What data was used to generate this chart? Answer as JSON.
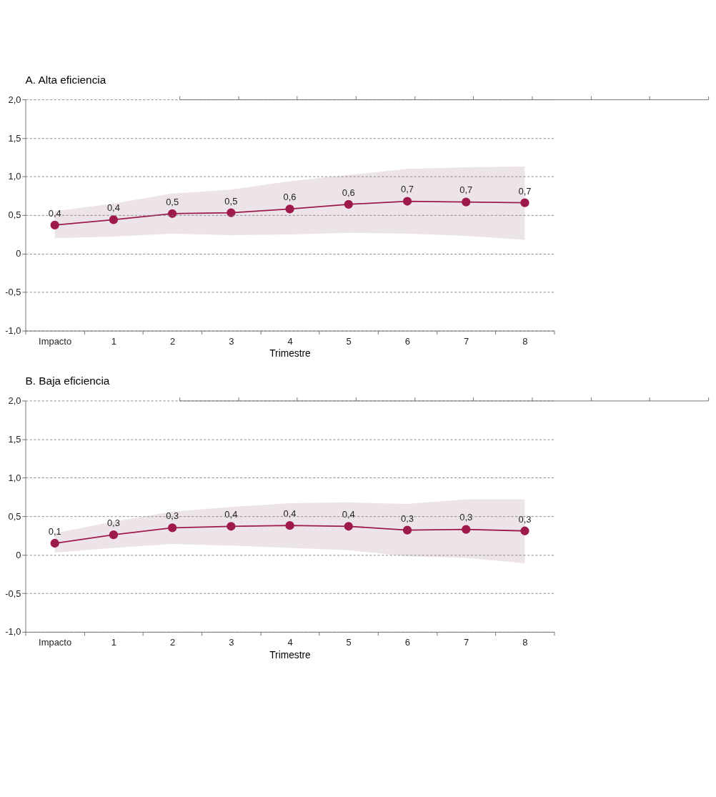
{
  "chart_data": [
    {
      "type": "line",
      "title": "A. Alta eficiencia",
      "xlabel": "Trimestre",
      "categories": [
        "Impacto",
        "1",
        "2",
        "3",
        "4",
        "5",
        "6",
        "7",
        "8"
      ],
      "series": [
        {
          "color": "#9e1a4c",
          "values": [
            0.37,
            0.44,
            0.52,
            0.53,
            0.58,
            0.64,
            0.68,
            0.67,
            0.66
          ],
          "lower": [
            0.2,
            0.22,
            0.26,
            0.24,
            0.25,
            0.27,
            0.26,
            0.23,
            0.18
          ],
          "upper": [
            0.55,
            0.65,
            0.78,
            0.83,
            0.94,
            1.02,
            1.1,
            1.12,
            1.13
          ],
          "value_labels": [
            "0,4",
            "0,4",
            "0,5",
            "0,5",
            "0,6",
            "0,6",
            "0,7",
            "0,7",
            "0,7"
          ]
        }
      ],
      "ylim": [
        -1.0,
        2.0
      ],
      "yticks": [
        {
          "value": -1.0,
          "label": "-1,0"
        },
        {
          "value": -0.5,
          "label": "-0,5"
        },
        {
          "value": 0,
          "label": "0"
        },
        {
          "value": 0.5,
          "label": "0,5"
        },
        {
          "value": 1.0,
          "label": "1,0"
        },
        {
          "value": 1.5,
          "label": "1,5"
        },
        {
          "value": 2.0,
          "label": "2,0"
        }
      ],
      "grid": "y",
      "marker": "circle",
      "line_style": "solid"
    },
    {
      "type": "line",
      "title": "B. Baja eficiencia",
      "xlabel": "Trimestre",
      "categories": [
        "Impacto",
        "1",
        "2",
        "3",
        "4",
        "5",
        "6",
        "7",
        "8"
      ],
      "series": [
        {
          "color": "#9e1a4c",
          "values": [
            0.15,
            0.26,
            0.35,
            0.37,
            0.38,
            0.37,
            0.32,
            0.33,
            0.31
          ],
          "lower": [
            0.03,
            0.09,
            0.14,
            0.12,
            0.09,
            0.06,
            -0.02,
            -0.04,
            -0.11
          ],
          "upper": [
            0.28,
            0.43,
            0.56,
            0.62,
            0.67,
            0.68,
            0.66,
            0.72,
            0.72
          ],
          "value_labels": [
            "0,1",
            "0,3",
            "0,3",
            "0,4",
            "0,4",
            "0,4",
            "0,3",
            "0,3",
            "0,3"
          ]
        }
      ],
      "ylim": [
        -1.0,
        2.0
      ],
      "yticks": [
        {
          "value": -1.0,
          "label": "-1,0"
        },
        {
          "value": -0.5,
          "label": "-0,5"
        },
        {
          "value": 0,
          "label": "0"
        },
        {
          "value": 0.5,
          "label": "0,5"
        },
        {
          "value": 1.0,
          "label": "1,0"
        },
        {
          "value": 1.5,
          "label": "1,5"
        },
        {
          "value": 2.0,
          "label": "2,0"
        }
      ],
      "grid": "y",
      "marker": "circle",
      "line_style": "solid"
    }
  ]
}
